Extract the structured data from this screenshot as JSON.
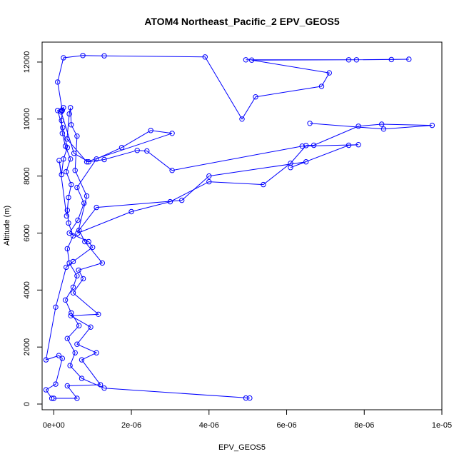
{
  "chart_data": {
    "type": "line",
    "title": "ATOM4 Northeast_Pacific_2 EPV_GEOS5",
    "xlabel": "EPV_GEOS5",
    "ylabel": "Altitude (m)",
    "xlim": [
      -3e-07,
      1e-05
    ],
    "ylim": [
      -200,
      12700
    ],
    "x_ticks": [
      0,
      2e-06,
      4e-06,
      6e-06,
      8e-06,
      1e-05
    ],
    "x_tick_labels": [
      "0e+00",
      "2e-06",
      "4e-06",
      "6e-06",
      "8e-06",
      "1e-05"
    ],
    "y_ticks": [
      0,
      2000,
      4000,
      6000,
      8000,
      10000,
      12000
    ],
    "y_tick_labels": [
      "0",
      "2000",
      "4000",
      "6000",
      "8000",
      "10000",
      "12000"
    ],
    "grid": false,
    "colors": {
      "series": "#0000ff",
      "axes": "#000000"
    },
    "series": [
      {
        "points": [
          [
            4.95e-06,
            210
          ],
          [
            5.05e-06,
            210
          ],
          [
            1.3e-06,
            560
          ],
          [
            7.2e-07,
            900
          ],
          [
            4.2e-07,
            1350
          ],
          [
            5.5e-07,
            1800
          ],
          [
            3.5e-07,
            2300
          ],
          [
            6.5e-07,
            2750
          ],
          [
            4.5e-07,
            3200
          ],
          [
            3e-07,
            3650
          ],
          [
            5e-07,
            4100
          ],
          [
            6e-07,
            4500
          ],
          [
            4e-07,
            4950
          ],
          [
            3.5e-07,
            5450
          ],
          [
            5e-07,
            5900
          ],
          [
            3.8e-07,
            6350
          ],
          [
            3.5e-07,
            6800
          ],
          [
            3.8e-07,
            7250
          ],
          [
            4.5e-07,
            7700
          ],
          [
            3.2e-07,
            8150
          ],
          [
            4.3e-07,
            8600
          ],
          [
            3e-07,
            9050
          ],
          [
            2.2e-07,
            9500
          ],
          [
            2e-07,
            9950
          ],
          [
            2.2e-07,
            10300
          ],
          [
            1e-07,
            11300
          ],
          [
            2.5e-07,
            12150
          ],
          [
            7.5e-07,
            12230
          ],
          [
            1.3e-06,
            12220
          ],
          [
            3.9e-06,
            12180
          ],
          [
            4.85e-06,
            10000
          ],
          [
            5.2e-06,
            10780
          ],
          [
            6.9e-06,
            11150
          ],
          [
            7.1e-06,
            11620
          ],
          [
            5.1e-06,
            12070
          ],
          [
            7.6e-06,
            12080
          ],
          [
            9.15e-06,
            12100
          ],
          [
            8.7e-06,
            12090
          ],
          [
            7.8e-06,
            12080
          ],
          [
            4.95e-06,
            12080
          ]
        ]
      },
      {
        "points": [
          [
            -5e-08,
            200
          ],
          [
            -2e-07,
            500
          ],
          [
            5e-08,
            700
          ],
          [
            2.2e-07,
            1600
          ],
          [
            1.3e-07,
            1700
          ],
          [
            -2e-07,
            1550
          ],
          [
            5e-08,
            3400
          ],
          [
            3.2e-07,
            4800
          ],
          [
            5e-07,
            5000
          ],
          [
            1e-06,
            5500
          ],
          [
            9e-07,
            5700
          ],
          [
            4e-07,
            6000
          ],
          [
            6.2e-07,
            6450
          ],
          [
            7.8e-07,
            7050
          ],
          [
            6e-07,
            7600
          ],
          [
            1.1e-06,
            8600
          ],
          [
            1.75e-06,
            9000
          ],
          [
            2.5e-06,
            9600
          ],
          [
            3.05e-06,
            9500
          ],
          [
            8.5e-07,
            8500
          ],
          [
            3.4e-07,
            9300
          ],
          [
            4e-07,
            10180
          ],
          [
            4.3e-07,
            10400
          ],
          [
            4.5e-07,
            9800
          ],
          [
            6e-07,
            9400
          ],
          [
            5.5e-07,
            8200
          ],
          [
            8.5e-07,
            7300
          ],
          [
            6.2e-07,
            6000
          ],
          [
            2e-06,
            6750
          ],
          [
            3e-06,
            7100
          ],
          [
            4e-06,
            7800
          ],
          [
            5.4e-06,
            7700
          ],
          [
            6.1e-06,
            8450
          ],
          [
            6.5e-06,
            9070
          ],
          [
            6.7e-06,
            9080
          ],
          [
            7.85e-06,
            9750
          ],
          [
            8.45e-06,
            9820
          ],
          [
            9.75e-06,
            9780
          ],
          [
            8.5e-06,
            9650
          ],
          [
            6.6e-06,
            9850
          ]
        ]
      },
      {
        "points": [
          [
            0,
            200
          ],
          [
            6e-07,
            200
          ],
          [
            3.5e-07,
            640
          ],
          [
            1.2e-06,
            680
          ],
          [
            7.2e-07,
            1550
          ],
          [
            1.1e-06,
            1800
          ],
          [
            6e-07,
            2100
          ],
          [
            9.5e-07,
            2700
          ],
          [
            4.4e-07,
            3100
          ],
          [
            1.15e-06,
            3150
          ],
          [
            5e-07,
            3900
          ],
          [
            7.6e-07,
            4400
          ],
          [
            6.4e-07,
            4700
          ],
          [
            1.25e-06,
            4950
          ],
          [
            8e-07,
            5700
          ],
          [
            6.5e-07,
            6100
          ],
          [
            1.1e-06,
            6900
          ],
          [
            3.3e-06,
            7150
          ],
          [
            4e-06,
            8000
          ],
          [
            6.5e-06,
            8500
          ],
          [
            6.1e-06,
            8300
          ],
          [
            7.6e-06,
            9080
          ],
          [
            7.85e-06,
            9100
          ],
          [
            6.4e-06,
            9050
          ],
          [
            3.05e-06,
            8200
          ],
          [
            2.4e-06,
            8880
          ],
          [
            2.15e-06,
            8900
          ],
          [
            1.3e-06,
            8580
          ],
          [
            9e-07,
            8500
          ],
          [
            5.2e-07,
            8800
          ],
          [
            1.9e-07,
            10250
          ],
          [
            2e-07,
            10300
          ],
          [
            2.5e-07,
            10400
          ],
          [
            1e-07,
            10300
          ],
          [
            2.3e-07,
            9700
          ],
          [
            3.5e-07,
            9000
          ],
          [
            2.5e-07,
            8600
          ],
          [
            2e-07,
            8050
          ],
          [
            1.4e-07,
            8550
          ],
          [
            3.3e-07,
            6600
          ]
        ]
      }
    ]
  }
}
